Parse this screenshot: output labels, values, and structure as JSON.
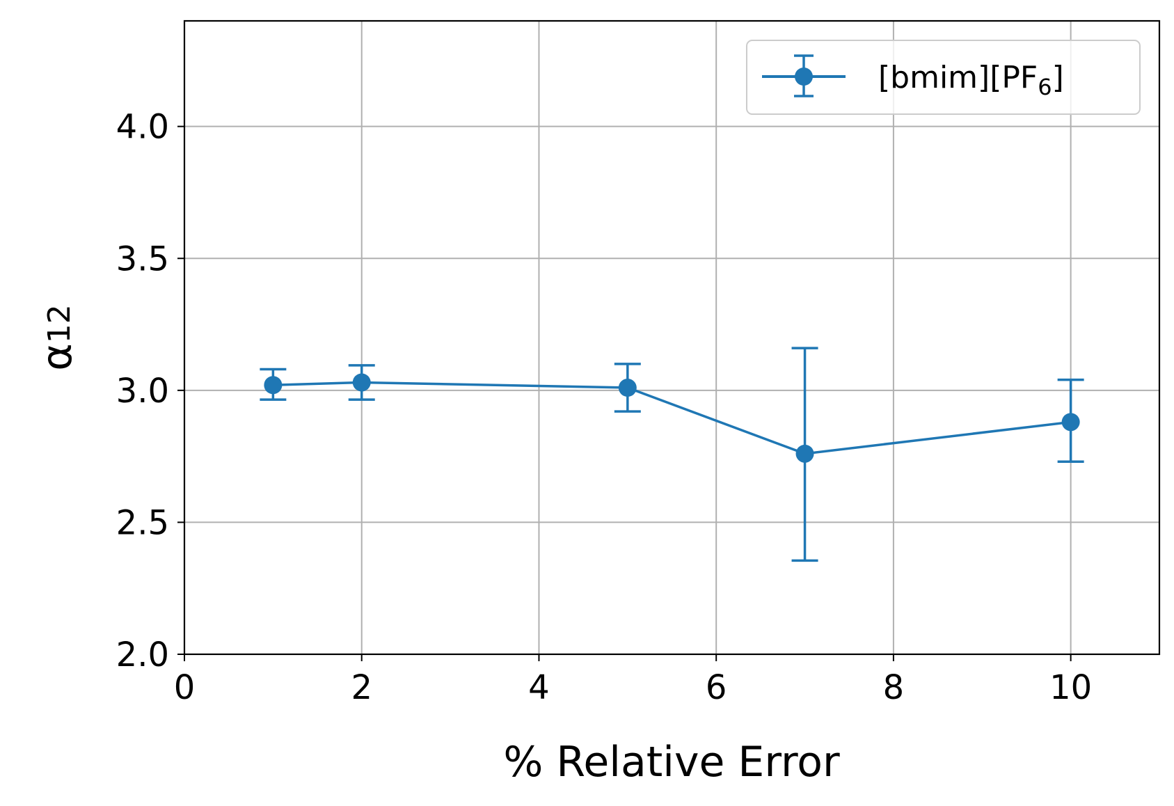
{
  "chart_data": {
    "type": "line",
    "title": "",
    "xlabel": "% Relative Error",
    "ylabel": "α",
    "ylabel_subscript": "12",
    "xlim": [
      0,
      11
    ],
    "ylim": [
      2.0,
      4.4
    ],
    "xticks": [
      0,
      2,
      4,
      6,
      8,
      10
    ],
    "yticks": [
      2.0,
      2.5,
      3.0,
      3.5,
      4.0
    ],
    "xtick_labels": [
      "0",
      "2",
      "4",
      "6",
      "8",
      "10"
    ],
    "ytick_labels": [
      "2.0",
      "2.5",
      "3.0",
      "3.5",
      "4.0"
    ],
    "grid": true,
    "legend_position": "top-right",
    "series": [
      {
        "name": "[bmim][PF6]",
        "name_main": "[bmim][PF",
        "name_sub": "6",
        "name_end": "]",
        "color": "#1f77b4",
        "x": [
          1,
          2,
          5,
          7,
          10
        ],
        "y": [
          3.02,
          3.03,
          3.01,
          2.76,
          2.88
        ],
        "yerr_low": [
          2.965,
          2.965,
          2.92,
          2.355,
          2.73
        ],
        "yerr_high": [
          3.08,
          3.095,
          3.1,
          3.16,
          3.04
        ]
      }
    ]
  }
}
